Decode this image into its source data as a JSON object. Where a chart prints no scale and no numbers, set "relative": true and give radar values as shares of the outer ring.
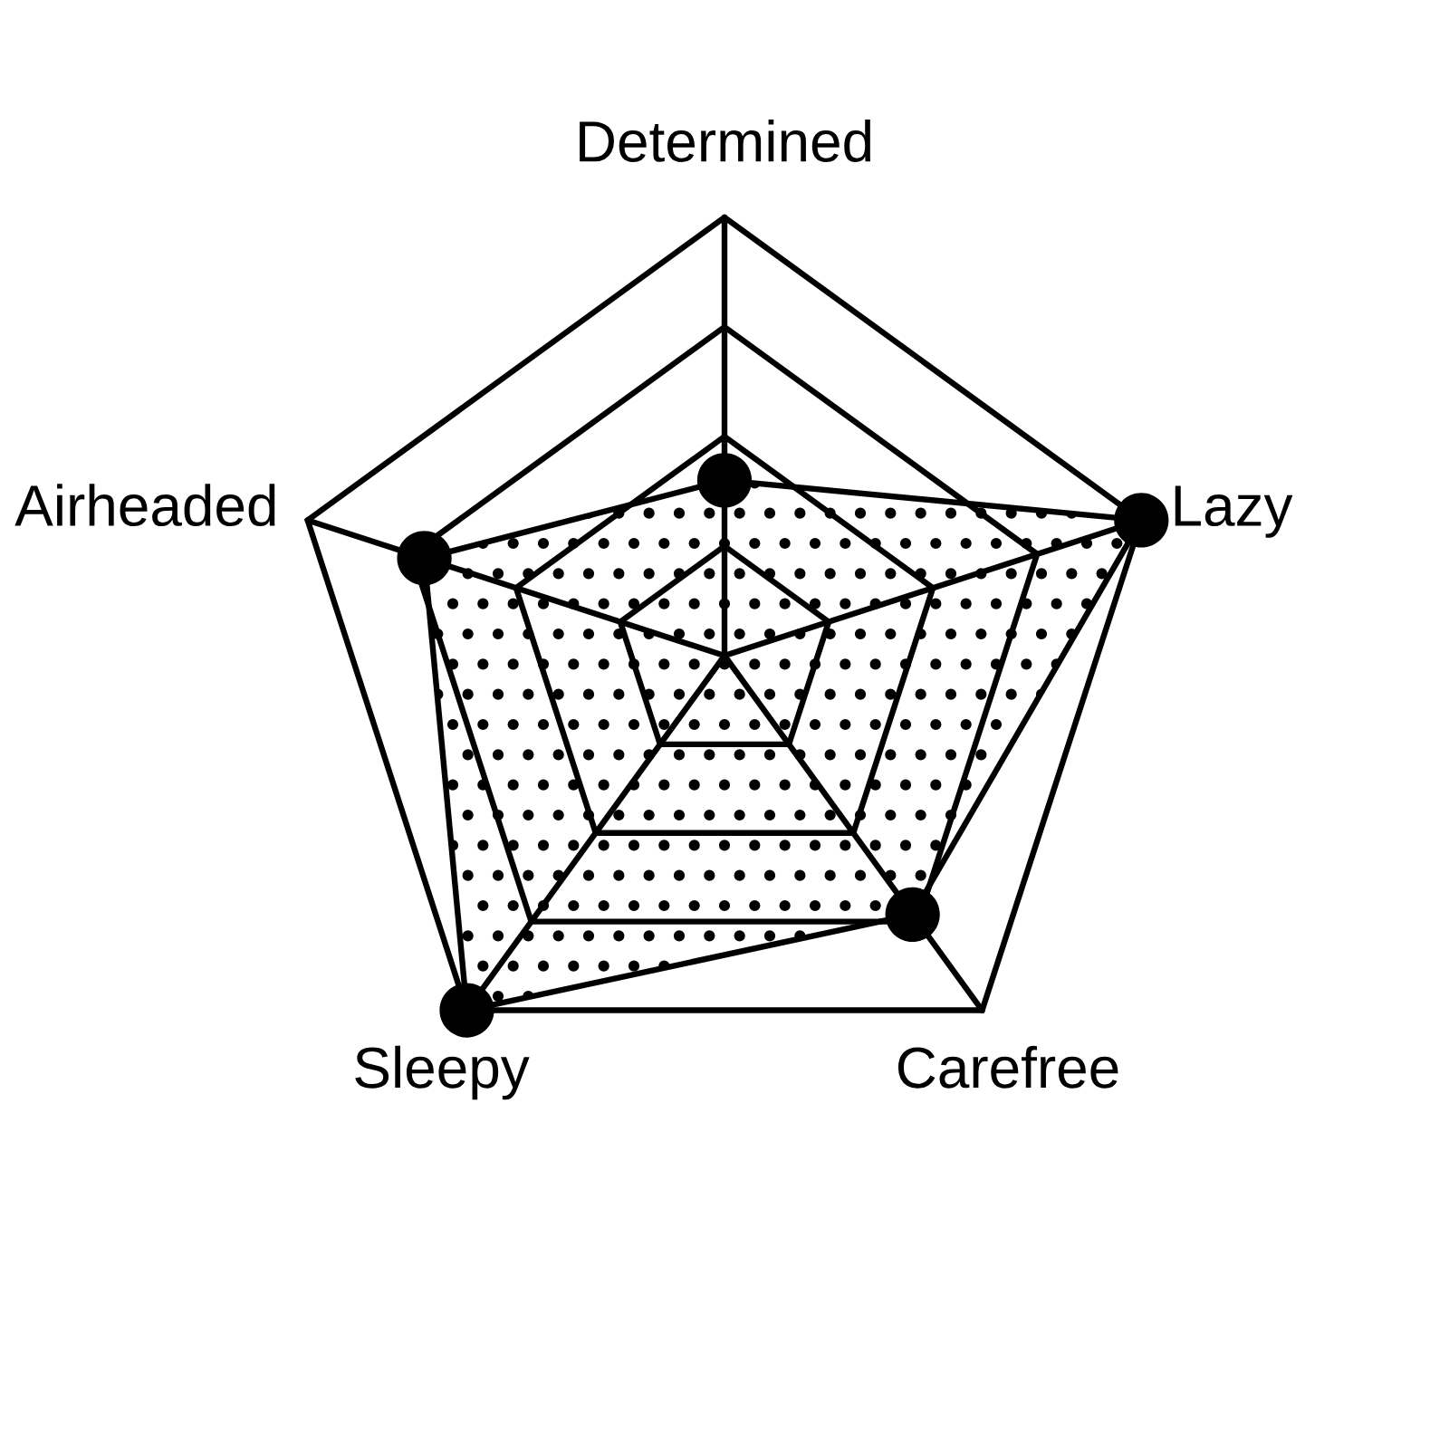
{
  "chart_data": {
    "type": "radar",
    "categories": [
      "Determined",
      "Lazy",
      "Carefree",
      "Sleepy",
      "Airheaded"
    ],
    "relative": true,
    "grid": true,
    "marker": "circle",
    "series": [
      {
        "color": "#000000",
        "values": [
          0.4,
          1.0,
          0.73,
          1.0,
          0.72
        ]
      }
    ]
  }
}
